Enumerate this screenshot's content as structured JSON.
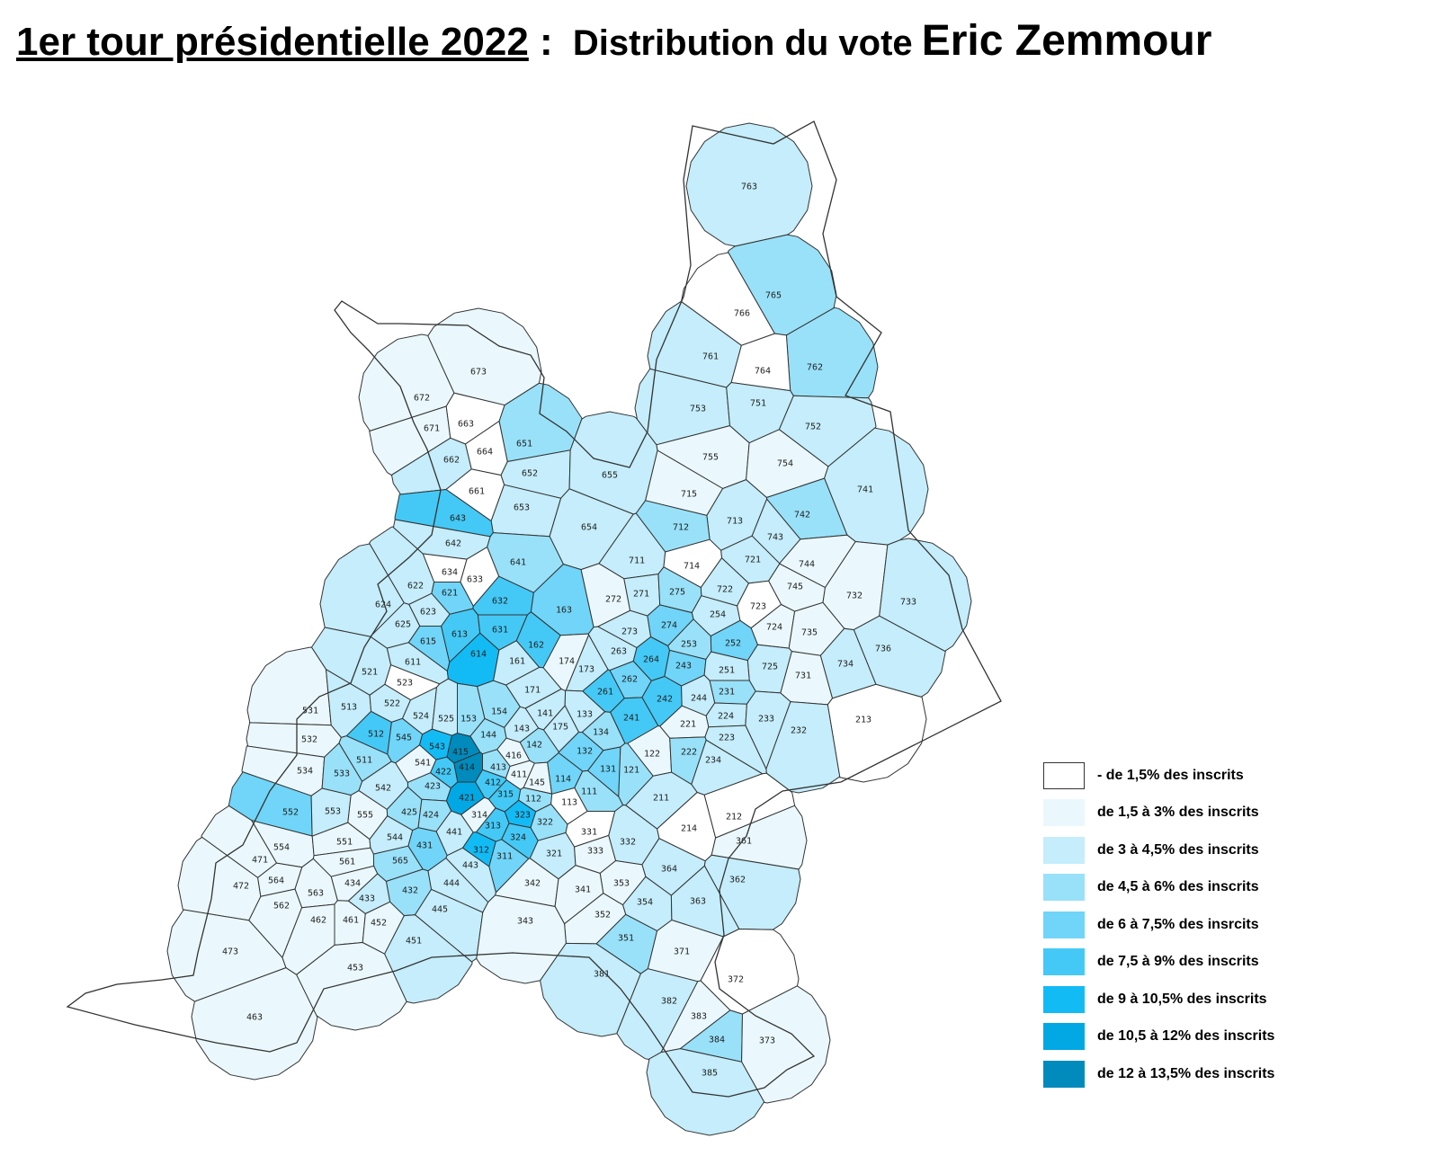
{
  "title": {
    "part1": "1er tour présidentielle 2022",
    "part2": " : ",
    "part3": "Distribution du vote",
    "part4": "Eric Zemmour"
  },
  "legend": [
    {
      "label": "- de 1,5% des inscrits",
      "color": "#ffffff"
    },
    {
      "label": "de 1,5 à 3% des inscrits",
      "color": "#eaf8fd"
    },
    {
      "label": "de 3 à 4,5% des inscrits",
      "color": "#c5edfb"
    },
    {
      "label": "de 4,5 à 6% des inscrits",
      "color": "#99e1f9"
    },
    {
      "label": "de 6 à 7,5% des insrcits",
      "color": "#70d5f8"
    },
    {
      "label": "de 7,5 à 9% des inscrits",
      "color": "#44c9f6"
    },
    {
      "label": "de 9 à 10,5% des inscrits",
      "color": "#13bbf5"
    },
    {
      "label": "de 10,5 à 12% des inscrits",
      "color": "#02a8e4"
    },
    {
      "label": "de 12 à 13,5% des inscrits",
      "color": "#008bbd"
    }
  ],
  "districts": [
    {
      "id": "763",
      "cls": 2
    },
    {
      "id": "765",
      "cls": 3
    },
    {
      "id": "766",
      "cls": 0
    },
    {
      "id": "761",
      "cls": 2
    },
    {
      "id": "762",
      "cls": 3
    },
    {
      "id": "764",
      "cls": 0
    },
    {
      "id": "753",
      "cls": 2
    },
    {
      "id": "751",
      "cls": 2
    },
    {
      "id": "752",
      "cls": 2
    },
    {
      "id": "755",
      "cls": 1
    },
    {
      "id": "754",
      "cls": 1
    },
    {
      "id": "741",
      "cls": 2
    },
    {
      "id": "742",
      "cls": 3
    },
    {
      "id": "715",
      "cls": 1
    },
    {
      "id": "713",
      "cls": 2
    },
    {
      "id": "712",
      "cls": 3
    },
    {
      "id": "743",
      "cls": 2
    },
    {
      "id": "744",
      "cls": 1
    },
    {
      "id": "721",
      "cls": 2
    },
    {
      "id": "711",
      "cls": 2
    },
    {
      "id": "714",
      "cls": 0
    },
    {
      "id": "745",
      "cls": 1
    },
    {
      "id": "722",
      "cls": 2
    },
    {
      "id": "732",
      "cls": 1
    },
    {
      "id": "733",
      "cls": 2
    },
    {
      "id": "723",
      "cls": 0
    },
    {
      "id": "724",
      "cls": 1
    },
    {
      "id": "735",
      "cls": 1
    },
    {
      "id": "736",
      "cls": 2
    },
    {
      "id": "734",
      "cls": 2
    },
    {
      "id": "731",
      "cls": 1
    },
    {
      "id": "725",
      "cls": 2
    },
    {
      "id": "213",
      "cls": 0
    },
    {
      "id": "673",
      "cls": 1
    },
    {
      "id": "672",
      "cls": 1
    },
    {
      "id": "671",
      "cls": 1
    },
    {
      "id": "663",
      "cls": 0
    },
    {
      "id": "664",
      "cls": 0
    },
    {
      "id": "662",
      "cls": 2
    },
    {
      "id": "651",
      "cls": 3
    },
    {
      "id": "652",
      "cls": 2
    },
    {
      "id": "655",
      "cls": 2
    },
    {
      "id": "661",
      "cls": 0
    },
    {
      "id": "653",
      "cls": 2
    },
    {
      "id": "654",
      "cls": 2
    },
    {
      "id": "643",
      "cls": 5
    },
    {
      "id": "642",
      "cls": 2
    },
    {
      "id": "641",
      "cls": 3
    },
    {
      "id": "634",
      "cls": 0
    },
    {
      "id": "633",
      "cls": 0
    },
    {
      "id": "622",
      "cls": 2
    },
    {
      "id": "621",
      "cls": 4
    },
    {
      "id": "632",
      "cls": 5
    },
    {
      "id": "163",
      "cls": 4
    },
    {
      "id": "272",
      "cls": 1
    },
    {
      "id": "271",
      "cls": 2
    },
    {
      "id": "275",
      "cls": 3
    },
    {
      "id": "624",
      "cls": 2
    },
    {
      "id": "623",
      "cls": 2
    },
    {
      "id": "625",
      "cls": 2
    },
    {
      "id": "254",
      "cls": 2
    },
    {
      "id": "273",
      "cls": 2
    },
    {
      "id": "274",
      "cls": 4
    },
    {
      "id": "615",
      "cls": 4
    },
    {
      "id": "613",
      "cls": 5
    },
    {
      "id": "631",
      "cls": 5
    },
    {
      "id": "162",
      "cls": 5
    },
    {
      "id": "252",
      "cls": 4
    },
    {
      "id": "253",
      "cls": 3
    },
    {
      "id": "611",
      "cls": 2
    },
    {
      "id": "614",
      "cls": 6
    },
    {
      "id": "161",
      "cls": 2
    },
    {
      "id": "174",
      "cls": 1
    },
    {
      "id": "263",
      "cls": 2
    },
    {
      "id": "264",
      "cls": 5
    },
    {
      "id": "243",
      "cls": 4
    },
    {
      "id": "251",
      "cls": 2
    },
    {
      "id": "521",
      "cls": 2
    },
    {
      "id": "523",
      "cls": 0
    },
    {
      "id": "173",
      "cls": 2
    },
    {
      "id": "262",
      "cls": 4
    },
    {
      "id": "231",
      "cls": 3
    },
    {
      "id": "171",
      "cls": 2
    },
    {
      "id": "261",
      "cls": 5
    },
    {
      "id": "242",
      "cls": 5
    },
    {
      "id": "244",
      "cls": 2
    },
    {
      "id": "531",
      "cls": 1
    },
    {
      "id": "513",
      "cls": 2
    },
    {
      "id": "522",
      "cls": 2
    },
    {
      "id": "524",
      "cls": 2
    },
    {
      "id": "525",
      "cls": 2
    },
    {
      "id": "153",
      "cls": 3
    },
    {
      "id": "154",
      "cls": 3
    },
    {
      "id": "141",
      "cls": 2
    },
    {
      "id": "133",
      "cls": 2
    },
    {
      "id": "241",
      "cls": 5
    },
    {
      "id": "224",
      "cls": 2
    },
    {
      "id": "233",
      "cls": 2
    },
    {
      "id": "532",
      "cls": 1
    },
    {
      "id": "512",
      "cls": 5
    },
    {
      "id": "545",
      "cls": 4
    },
    {
      "id": "143",
      "cls": 2
    },
    {
      "id": "175",
      "cls": 2
    },
    {
      "id": "221",
      "cls": 1
    },
    {
      "id": "223",
      "cls": 2
    },
    {
      "id": "232",
      "cls": 2
    },
    {
      "id": "144",
      "cls": 3
    },
    {
      "id": "134",
      "cls": 3
    },
    {
      "id": "543",
      "cls": 6
    },
    {
      "id": "415",
      "cls": 8
    },
    {
      "id": "142",
      "cls": 3
    },
    {
      "id": "511",
      "cls": 3
    },
    {
      "id": "541",
      "cls": 1
    },
    {
      "id": "416",
      "cls": 1
    },
    {
      "id": "132",
      "cls": 4
    },
    {
      "id": "122",
      "cls": 1
    },
    {
      "id": "222",
      "cls": 3
    },
    {
      "id": "234",
      "cls": 2
    },
    {
      "id": "534",
      "cls": 1
    },
    {
      "id": "533",
      "cls": 3
    },
    {
      "id": "414",
      "cls": 8
    },
    {
      "id": "413",
      "cls": 3
    },
    {
      "id": "422",
      "cls": 5
    },
    {
      "id": "131",
      "cls": 4
    },
    {
      "id": "121",
      "cls": 3
    },
    {
      "id": "411",
      "cls": 1
    },
    {
      "id": "423",
      "cls": 3
    },
    {
      "id": "412",
      "cls": 5
    },
    {
      "id": "145",
      "cls": 1
    },
    {
      "id": "114",
      "cls": 4
    },
    {
      "id": "542",
      "cls": 2
    },
    {
      "id": "111",
      "cls": 3
    },
    {
      "id": "421",
      "cls": 7
    },
    {
      "id": "315",
      "cls": 5
    },
    {
      "id": "112",
      "cls": 3
    },
    {
      "id": "113",
      "cls": 0
    },
    {
      "id": "211",
      "cls": 2
    },
    {
      "id": "552",
      "cls": 4
    },
    {
      "id": "553",
      "cls": 2
    },
    {
      "id": "555",
      "cls": 1
    },
    {
      "id": "425",
      "cls": 3
    },
    {
      "id": "424",
      "cls": 3
    },
    {
      "id": "314",
      "cls": 1
    },
    {
      "id": "323",
      "cls": 6
    },
    {
      "id": "322",
      "cls": 3
    },
    {
      "id": "212",
      "cls": 0
    },
    {
      "id": "214",
      "cls": 0
    },
    {
      "id": "331",
      "cls": 0
    },
    {
      "id": "554",
      "cls": 1
    },
    {
      "id": "551",
      "cls": 1
    },
    {
      "id": "544",
      "cls": 2
    },
    {
      "id": "441",
      "cls": 2
    },
    {
      "id": "313",
      "cls": 5
    },
    {
      "id": "324",
      "cls": 5
    },
    {
      "id": "431",
      "cls": 4
    },
    {
      "id": "312",
      "cls": 6
    },
    {
      "id": "311",
      "cls": 4
    },
    {
      "id": "321",
      "cls": 2
    },
    {
      "id": "333",
      "cls": 1
    },
    {
      "id": "332",
      "cls": 2
    },
    {
      "id": "361",
      "cls": 1
    },
    {
      "id": "471",
      "cls": 1
    },
    {
      "id": "561",
      "cls": 1
    },
    {
      "id": "565",
      "cls": 3
    },
    {
      "id": "443",
      "cls": 2
    },
    {
      "id": "364",
      "cls": 2
    },
    {
      "id": "362",
      "cls": 2
    },
    {
      "id": "472",
      "cls": 1
    },
    {
      "id": "564",
      "cls": 1
    },
    {
      "id": "434",
      "cls": 1
    },
    {
      "id": "432",
      "cls": 3
    },
    {
      "id": "444",
      "cls": 2
    },
    {
      "id": "342",
      "cls": 1
    },
    {
      "id": "353",
      "cls": 1
    },
    {
      "id": "563",
      "cls": 1
    },
    {
      "id": "433",
      "cls": 2
    },
    {
      "id": "341",
      "cls": 1
    },
    {
      "id": "354",
      "cls": 2
    },
    {
      "id": "363",
      "cls": 2
    },
    {
      "id": "562",
      "cls": 1
    },
    {
      "id": "445",
      "cls": 2
    },
    {
      "id": "352",
      "cls": 1
    },
    {
      "id": "462",
      "cls": 1
    },
    {
      "id": "461",
      "cls": 1
    },
    {
      "id": "452",
      "cls": 1
    },
    {
      "id": "343",
      "cls": 1
    },
    {
      "id": "451",
      "cls": 2
    },
    {
      "id": "351",
      "cls": 3
    },
    {
      "id": "371",
      "cls": 1
    },
    {
      "id": "473",
      "cls": 1
    },
    {
      "id": "453",
      "cls": 1
    },
    {
      "id": "381",
      "cls": 2
    },
    {
      "id": "372",
      "cls": 0
    },
    {
      "id": "382",
      "cls": 2
    },
    {
      "id": "463",
      "cls": 1
    },
    {
      "id": "383",
      "cls": 1
    },
    {
      "id": "384",
      "cls": 3
    },
    {
      "id": "373",
      "cls": 1
    },
    {
      "id": "385",
      "cls": 2
    }
  ]
}
